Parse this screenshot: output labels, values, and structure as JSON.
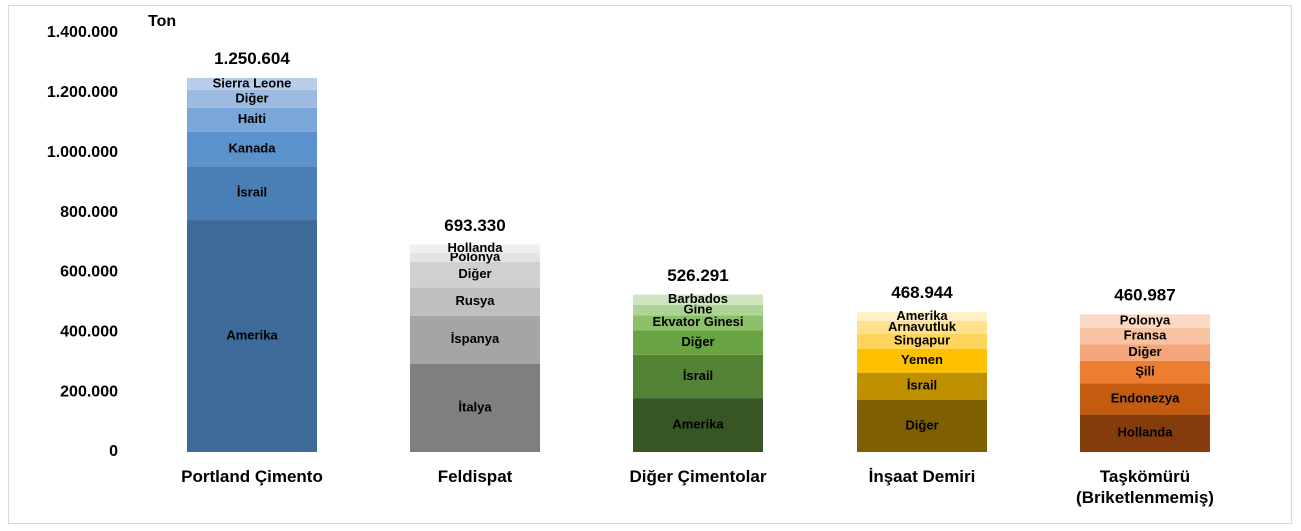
{
  "chart_data": {
    "type": "stacked-bar",
    "y_unit": "Ton",
    "ylim": [
      0,
      1400000
    ],
    "yticks": [
      0,
      {
        "value": 200000,
        "label": "200.000"
      },
      {
        "value": 400000,
        "label": "400.000"
      },
      {
        "value": 600000,
        "label": "600.000"
      },
      {
        "value": 800000,
        "label": "800.000"
      },
      {
        "value": 1000000,
        "label": "1.000.000"
      },
      {
        "value": 1200000,
        "label": "1.200.000"
      },
      {
        "value": 1400000,
        "label": "1.400.000"
      }
    ],
    "categories": [
      "Portland Çimento",
      "Feldispat",
      "Diğer Çimentolar",
      "İnşaat Demiri",
      "Taşkömürü (Briketlenmemiş)"
    ],
    "totals": [
      1250604,
      693330,
      526291,
      468944,
      460987
    ],
    "total_labels": [
      "1.250.604",
      "693.330",
      "526.291",
      "468.944",
      "460.987"
    ],
    "segments": [
      [
        {
          "name": "Amerika",
          "value": 775000,
          "color": "#3e6a99"
        },
        {
          "name": "İsrail",
          "value": 180000,
          "color": "#4a7fb5"
        },
        {
          "name": "Kanada",
          "value": 115000,
          "color": "#5b92cc"
        },
        {
          "name": "Haiti",
          "value": 80000,
          "color": "#7aa7da"
        },
        {
          "name": "Diğer",
          "value": 60000,
          "color": "#9dbbe0"
        },
        {
          "name": "Sierra Leone",
          "value": 40000,
          "color": "#b8cde9"
        }
      ],
      [
        {
          "name": "İtalya",
          "value": 295000,
          "color": "#7f7f7f"
        },
        {
          "name": "İspanya",
          "value": 160000,
          "color": "#a5a5a5"
        },
        {
          "name": "Rusya",
          "value": 95000,
          "color": "#bfbfbf"
        },
        {
          "name": "Diğer",
          "value": 85000,
          "color": "#d0d0d0"
        },
        {
          "name": "Polonya",
          "value": 30000,
          "color": "#e3e3e3"
        },
        {
          "name": "Hollanda",
          "value": 28000,
          "color": "#efefef"
        }
      ],
      [
        {
          "name": "Amerika",
          "value": 180000,
          "color": "#375623"
        },
        {
          "name": "İsrail",
          "value": 145000,
          "color": "#548235"
        },
        {
          "name": "Diğer",
          "value": 82000,
          "color": "#6aa341"
        },
        {
          "name": "Ekvator Ginesi",
          "value": 50000,
          "color": "#8cc06a"
        },
        {
          "name": "Gine",
          "value": 35000,
          "color": "#aed495"
        },
        {
          "name": "Barbados",
          "value": 34000,
          "color": "#cfe5bf"
        }
      ],
      [
        {
          "name": "Diğer",
          "value": 175000,
          "color": "#7f6000"
        },
        {
          "name": "İsrail",
          "value": 90000,
          "color": "#bf9000"
        },
        {
          "name": "Yemen",
          "value": 80000,
          "color": "#ffc000"
        },
        {
          "name": "Singapur",
          "value": 50000,
          "color": "#ffd45a"
        },
        {
          "name": "Arnavutluk",
          "value": 43000,
          "color": "#ffe08c"
        },
        {
          "name": "Amerika",
          "value": 30000,
          "color": "#fff0c6"
        }
      ],
      [
        {
          "name": "Hollanda",
          "value": 125000,
          "color": "#843c0c"
        },
        {
          "name": "Endonezya",
          "value": 105000,
          "color": "#c55a11"
        },
        {
          "name": "Şili",
          "value": 75000,
          "color": "#ed7d31"
        },
        {
          "name": "Diğer",
          "value": 55000,
          "color": "#f4a67a"
        },
        {
          "name": "Fransa",
          "value": 55000,
          "color": "#f7c3a1"
        },
        {
          "name": "Polonya",
          "value": 45000,
          "color": "#fbdac5"
        }
      ]
    ]
  }
}
